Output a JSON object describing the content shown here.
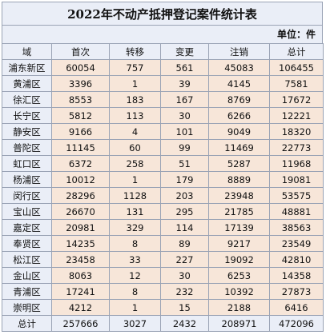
{
  "title": "2022年不动产抵押登记案件统计表",
  "unit_label": "单位：件",
  "columns": [
    "域",
    "首次",
    "转移",
    "变更",
    "注销",
    "总计"
  ],
  "rows": [
    [
      "浦东新区",
      "60054",
      "757",
      "561",
      "45083",
      "106455"
    ],
    [
      "黄浦区",
      "3396",
      "1",
      "39",
      "4145",
      "7581"
    ],
    [
      "徐汇区",
      "8553",
      "183",
      "167",
      "8769",
      "17672"
    ],
    [
      "长宁区",
      "5812",
      "113",
      "30",
      "6266",
      "12221"
    ],
    [
      "静安区",
      "9166",
      "4",
      "101",
      "9049",
      "18320"
    ],
    [
      "普陀区",
      "11145",
      "60",
      "99",
      "11469",
      "22773"
    ],
    [
      "虹口区",
      "6372",
      "258",
      "51",
      "5287",
      "11968"
    ],
    [
      "杨浦区",
      "10012",
      "1",
      "179",
      "8889",
      "19081"
    ],
    [
      "闵行区",
      "28296",
      "1128",
      "203",
      "23948",
      "53575"
    ],
    [
      "宝山区",
      "26670",
      "131",
      "295",
      "21785",
      "48881"
    ],
    [
      "嘉定区",
      "20981",
      "329",
      "114",
      "17139",
      "38563"
    ],
    [
      "奉贤区",
      "14235",
      "8",
      "89",
      "9217",
      "23549"
    ],
    [
      "松江区",
      "23458",
      "33",
      "227",
      "19092",
      "42810"
    ],
    [
      "金山区",
      "8063",
      "12",
      "30",
      "6253",
      "14358"
    ],
    [
      "青浦区",
      "17241",
      "8",
      "232",
      "10392",
      "27873"
    ],
    [
      "崇明区",
      "4212",
      "1",
      "15",
      "2188",
      "6416"
    ]
  ],
  "total_row": [
    "总计",
    "257666",
    "3027",
    "2432",
    "208971",
    "472096"
  ],
  "colors": {
    "header_bg": "#eaeef7",
    "cell_bg": "#f7e6d9",
    "border": "#9aa3b5"
  }
}
